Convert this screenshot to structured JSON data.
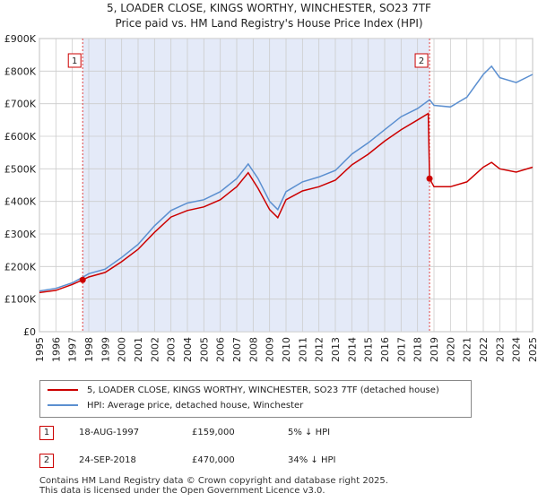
{
  "title_line1": "5, LOADER CLOSE, KINGS WORTHY, WINCHESTER, SO23 7TF",
  "title_line2": "Price paid vs. HM Land Registry's House Price Index (HPI)",
  "colors": {
    "price_line": "#cc0000",
    "hpi_line": "#5b8fd0",
    "shade": "#e4eaf8",
    "vline": "#e04040",
    "grid": "#cccccc"
  },
  "legend": {
    "price_label": "5, LOADER CLOSE, KINGS WORTHY, WINCHESTER, SO23 7TF (detached house)",
    "hpi_label": "HPI: Average price, detached house, Winchester"
  },
  "transactions": [
    {
      "num": "1",
      "date": "18-AUG-1997",
      "price": "£159,000",
      "hpi": "5% ↓ HPI"
    },
    {
      "num": "2",
      "date": "24-SEP-2018",
      "price": "£470,000",
      "hpi": "34% ↓ HPI"
    }
  ],
  "footer": {
    "line1": "Contains HM Land Registry data © Crown copyright and database right 2025.",
    "line2": "This data is licensed under the Open Government Licence v3.0."
  },
  "chart_data": {
    "type": "line",
    "xlim": [
      1995,
      2025
    ],
    "ylim": [
      0,
      900000
    ],
    "y_ticks": [
      0,
      100000,
      200000,
      300000,
      400000,
      500000,
      600000,
      700000,
      800000,
      900000
    ],
    "y_tick_labels": [
      "£0",
      "£100K",
      "£200K",
      "£300K",
      "£400K",
      "£500K",
      "£600K",
      "£700K",
      "£800K",
      "£900K"
    ],
    "x_ticks": [
      "1995",
      "1996",
      "1997",
      "1998",
      "1999",
      "2000",
      "2001",
      "2002",
      "2003",
      "2004",
      "2005",
      "2006",
      "2007",
      "2008",
      "2009",
      "2010",
      "2011",
      "2012",
      "2013",
      "2014",
      "2015",
      "2016",
      "2017",
      "2018",
      "2019",
      "2020",
      "2021",
      "2022",
      "2023",
      "2024",
      "2025"
    ],
    "shaded_range": [
      1997.63,
      2018.73
    ],
    "sale_markers": [
      {
        "label": "1",
        "x": 1997.63,
        "y": 159000
      },
      {
        "label": "2",
        "x": 2018.73,
        "y": 470000
      }
    ],
    "series": [
      {
        "name": "HPI: Average price, detached house, Winchester",
        "points": [
          [
            1995,
            125000
          ],
          [
            1996,
            133000
          ],
          [
            1997,
            150000
          ],
          [
            1997.63,
            167000
          ],
          [
            1998,
            178000
          ],
          [
            1999,
            192000
          ],
          [
            2000,
            228000
          ],
          [
            2001,
            268000
          ],
          [
            2002,
            325000
          ],
          [
            2003,
            372000
          ],
          [
            2004,
            395000
          ],
          [
            2005,
            405000
          ],
          [
            2006,
            430000
          ],
          [
            2007,
            470000
          ],
          [
            2007.7,
            515000
          ],
          [
            2008.3,
            470000
          ],
          [
            2009,
            400000
          ],
          [
            2009.5,
            375000
          ],
          [
            2010,
            430000
          ],
          [
            2011,
            460000
          ],
          [
            2012,
            475000
          ],
          [
            2013,
            495000
          ],
          [
            2014,
            545000
          ],
          [
            2015,
            580000
          ],
          [
            2016,
            620000
          ],
          [
            2017,
            660000
          ],
          [
            2018,
            685000
          ],
          [
            2018.73,
            712000
          ],
          [
            2019,
            695000
          ],
          [
            2020,
            690000
          ],
          [
            2021,
            720000
          ],
          [
            2022,
            790000
          ],
          [
            2022.5,
            815000
          ],
          [
            2023,
            780000
          ],
          [
            2024,
            765000
          ],
          [
            2025,
            790000
          ]
        ]
      },
      {
        "name": "5, LOADER CLOSE, KINGS WORTHY, WINCHESTER, SO23 7TF (detached house)",
        "points": [
          [
            1995,
            120000
          ],
          [
            1996,
            127000
          ],
          [
            1997,
            145000
          ],
          [
            1997.63,
            159000
          ],
          [
            1998,
            168000
          ],
          [
            1999,
            182000
          ],
          [
            2000,
            215000
          ],
          [
            2001,
            253000
          ],
          [
            2002,
            305000
          ],
          [
            2003,
            352000
          ],
          [
            2004,
            372000
          ],
          [
            2005,
            383000
          ],
          [
            2006,
            405000
          ],
          [
            2007,
            445000
          ],
          [
            2007.7,
            488000
          ],
          [
            2008.3,
            440000
          ],
          [
            2009,
            375000
          ],
          [
            2009.5,
            350000
          ],
          [
            2010,
            405000
          ],
          [
            2011,
            432000
          ],
          [
            2012,
            445000
          ],
          [
            2013,
            465000
          ],
          [
            2014,
            512000
          ],
          [
            2015,
            545000
          ],
          [
            2016,
            585000
          ],
          [
            2017,
            620000
          ],
          [
            2018,
            650000
          ],
          [
            2018.65,
            670000
          ],
          [
            2018.73,
            470000
          ],
          [
            2019,
            445000
          ],
          [
            2020,
            445000
          ],
          [
            2021,
            460000
          ],
          [
            2022,
            505000
          ],
          [
            2022.5,
            520000
          ],
          [
            2023,
            500000
          ],
          [
            2024,
            490000
          ],
          [
            2025,
            505000
          ]
        ]
      }
    ]
  }
}
